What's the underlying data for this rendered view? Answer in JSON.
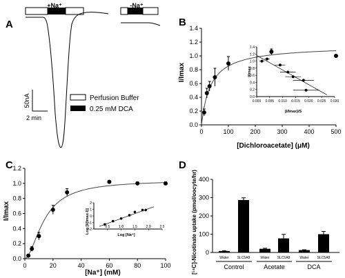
{
  "panel_labels": [
    "A",
    "B",
    "C",
    "D"
  ],
  "panelA": {
    "box_labels": [
      "+Na⁺",
      "-Na⁺"
    ],
    "scale_current": "50nA",
    "scale_time": "2 min",
    "legend": [
      {
        "label": "Perfusion Buffer",
        "color": "#ffffff"
      },
      {
        "label": "0.25 mM DCA",
        "color": "#000000"
      }
    ]
  },
  "chart_data": [
    {
      "type": "scatter",
      "panel": "B",
      "xlabel": "[Dichloroacetate] (μM)",
      "ylabel": "I/Imax",
      "xlim": [
        0,
        500
      ],
      "ylim": [
        0,
        1.4
      ],
      "xticks": [
        0,
        100,
        200,
        300,
        400,
        500
      ],
      "yticks": [
        0.0,
        0.2,
        0.4,
        0.6,
        0.8,
        1.0,
        1.2,
        1.4
      ],
      "x": [
        10,
        20,
        30,
        50,
        100,
        260,
        500
      ],
      "y": [
        0.18,
        0.46,
        0.56,
        0.69,
        0.89,
        1.06,
        1.0
      ],
      "yerr": [
        0.05,
        0.07,
        0.07,
        0.13,
        0.1,
        0.04,
        0.02
      ],
      "fit": {
        "model": "michaelis-menten",
        "vmax": 1.15,
        "k": 35
      },
      "inset": {
        "xlabel": "(I/Imax)/S",
        "ylabel": "I/Imax",
        "xlim": [
          0,
          0.03
        ],
        "ylim": [
          0,
          1.4
        ],
        "xticks": [
          "0.000",
          "0.005",
          "0.010",
          "0.015",
          "0.020",
          "0.025",
          "0.030"
        ],
        "yticks": [
          "0.0",
          "0.2",
          "0.4",
          "0.6",
          "0.8",
          "1.0",
          "1.2",
          "1.4"
        ],
        "x": [
          0.002,
          0.004,
          0.009,
          0.012,
          0.014,
          0.018,
          0.019
        ],
        "y": [
          1.0,
          1.06,
          0.89,
          0.69,
          0.56,
          0.46,
          0.18
        ],
        "xerr": [
          0.001,
          0.001,
          0.002,
          0.003,
          0.003,
          0.004,
          0.005
        ],
        "fit_line": [
          [
            0.0,
            1.16
          ],
          [
            0.027,
            0.05
          ]
        ]
      }
    },
    {
      "type": "scatter",
      "panel": "C",
      "xlabel": "[Na⁺] (mM)",
      "ylabel": "I/Imax",
      "xlim": [
        0,
        100
      ],
      "ylim": [
        0,
        1.2
      ],
      "xticks": [
        0,
        20,
        40,
        60,
        80,
        100
      ],
      "yticks": [
        0.0,
        0.2,
        0.4,
        0.6,
        0.8,
        1.0,
        1.2
      ],
      "x": [
        2.5,
        5,
        10,
        20,
        30,
        60,
        80,
        100
      ],
      "y": [
        0.04,
        0.13,
        0.3,
        0.65,
        0.88,
        1.02,
        1.0,
        1.0
      ],
      "yerr": [
        0.02,
        0.03,
        0.05,
        0.06,
        0.05,
        0.02,
        0.02,
        0.02
      ],
      "fit": {
        "model": "hill",
        "vmax": 1.04,
        "k": 14,
        "n": 1.8
      },
      "inset": {
        "xlabel": "Log [Na⁺]",
        "ylabel": "Log [I/(Imax-I)]",
        "xlim": [
          0,
          2.5
        ],
        "ylim": [
          -2,
          2
        ],
        "xticks": [
          "0.5",
          "1.0",
          "1.5",
          "2.0",
          "2.5"
        ],
        "yticks": [
          "-2",
          "-1",
          "0",
          "1",
          "2"
        ],
        "x": [
          0.4,
          0.7,
          1.0,
          1.3,
          1.5,
          1.78,
          1.9
        ],
        "y": [
          -1.3,
          -0.8,
          -0.4,
          0.1,
          0.6,
          0.9,
          0.9
        ],
        "fit_line": [
          [
            0.2,
            -1.6
          ],
          [
            2.2,
            1.4
          ]
        ]
      }
    },
    {
      "type": "bar",
      "panel": "D",
      "ylabel": "[¹⁴C]-Nicotinate uptake (pmol/oocyte/hr)",
      "ylim": [
        0,
        400
      ],
      "yticks": [
        0,
        100,
        200,
        300,
        400
      ],
      "categories": [
        "Water",
        "SLC5A8",
        "Water",
        "SLC5A8",
        "Water",
        "SLC5A8"
      ],
      "groups": [
        "Control",
        "Acetate",
        "DCA"
      ],
      "values": [
        8,
        287,
        20,
        77,
        13,
        100
      ],
      "errors": [
        2,
        12,
        3,
        22,
        2,
        15
      ]
    }
  ]
}
